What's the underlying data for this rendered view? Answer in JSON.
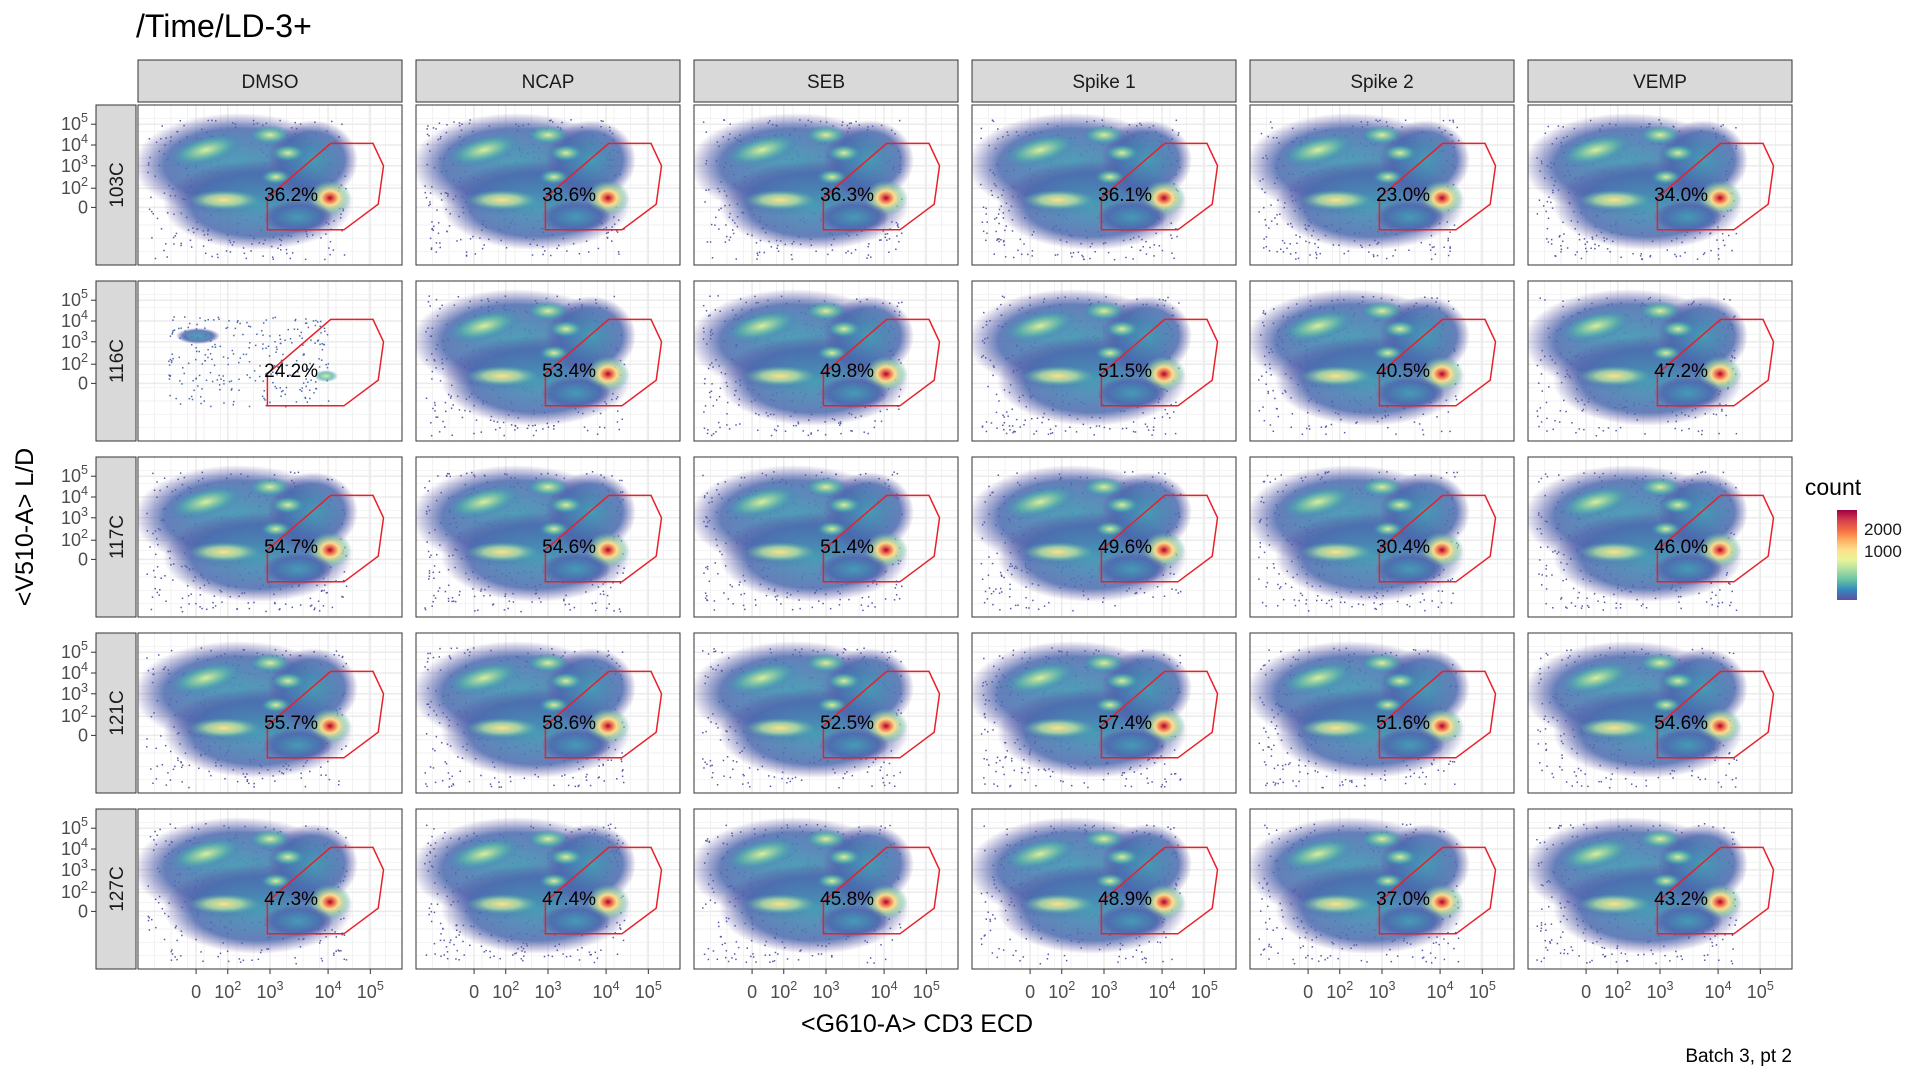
{
  "page": {
    "title": "/Time/LD-3+",
    "caption": "Batch 3, pt 2"
  },
  "chart_data": {
    "type": "heatmap",
    "title": "/Time/LD-3+",
    "xlabel": "<G610-A> CD3 ECD",
    "ylabel": "<V510-A> L/D",
    "columns": [
      "DMSO",
      "NCAP",
      "SEB",
      "Spike 1",
      "Spike 2",
      "VEMP"
    ],
    "rows": [
      "103C",
      "116C",
      "117C",
      "121C",
      "127C"
    ],
    "x_ticks": [
      "0",
      "10^2",
      "10^3",
      "10^4",
      "10^5"
    ],
    "y_ticks": [
      "10^5",
      "10^4",
      "10^3",
      "10^2",
      "0"
    ],
    "gate_percent": [
      [
        "36.2%",
        "38.6%",
        "36.3%",
        "36.1%",
        "23.0%",
        "34.0%"
      ],
      [
        "24.2%",
        "53.4%",
        "49.8%",
        "51.5%",
        "40.5%",
        "47.2%"
      ],
      [
        "54.7%",
        "54.6%",
        "51.4%",
        "49.6%",
        "30.4%",
        "46.0%"
      ],
      [
        "55.7%",
        "58.6%",
        "52.5%",
        "57.4%",
        "51.6%",
        "54.6%"
      ],
      [
        "47.3%",
        "47.4%",
        "45.8%",
        "48.9%",
        "37.0%",
        "43.2%"
      ]
    ],
    "legend": {
      "title": "count",
      "ticks": [
        "2000",
        "1000"
      ],
      "colorscale": [
        "#5E4FA2",
        "#3288BD",
        "#66C2A5",
        "#ABDDA4",
        "#E6F598",
        "#FEE08B",
        "#FDAE61",
        "#F46D43",
        "#D53E4F",
        "#9E0142"
      ]
    },
    "gate_color": "#E8202A",
    "grid": true
  }
}
